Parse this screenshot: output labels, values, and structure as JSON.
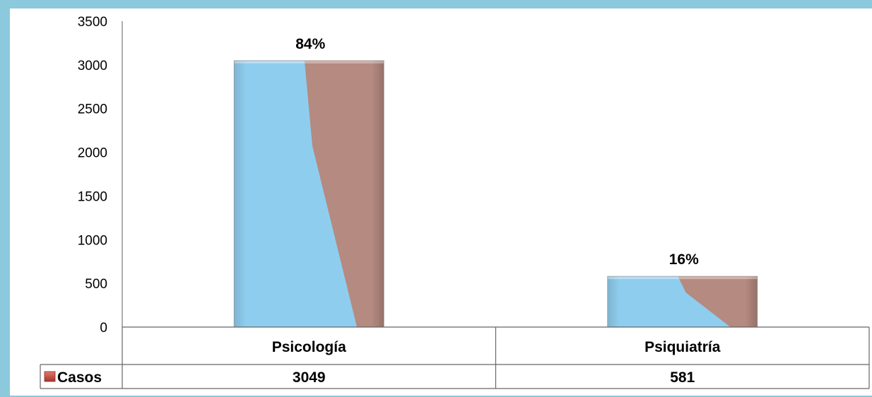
{
  "chart_data": {
    "type": "bar",
    "categories": [
      "Psicología",
      "Psiquiatría"
    ],
    "series": [
      {
        "name": "Casos",
        "values": [
          3049,
          581
        ]
      }
    ],
    "data_labels": [
      "84%",
      "16%"
    ],
    "yticks": [
      "0",
      "500",
      "1000",
      "1500",
      "2000",
      "2500",
      "3000",
      "3500"
    ],
    "ylim": [
      0,
      3500
    ],
    "grid": false,
    "data_table": true,
    "colors": {
      "frame": "#8cc9dc",
      "bar_blue": "#8fcdee",
      "bar_brown": "#b58a80",
      "legend_key": "#c0504d"
    }
  }
}
